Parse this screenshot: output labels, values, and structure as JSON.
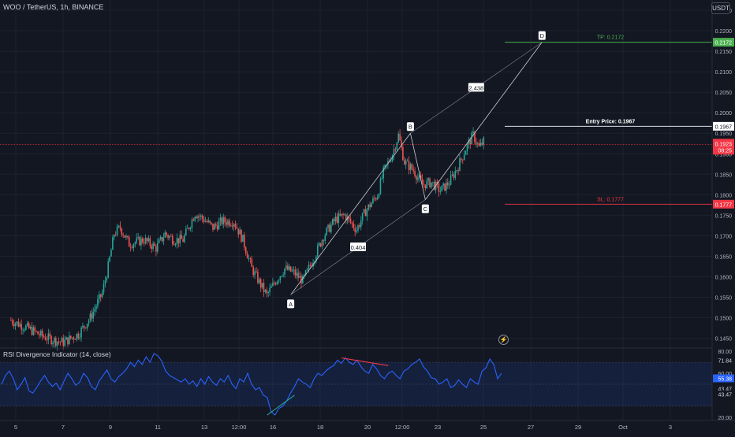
{
  "header": {
    "title": "WOO / TetherUS, 1h, BINANCE",
    "currency_button": "USDT"
  },
  "rsi_title": "RSI Divergence Indicator (14, close)",
  "colors": {
    "bg": "#131722",
    "up": "#26a69a",
    "down": "#ef5350",
    "tp": "#4caf50",
    "sl": "#f23645",
    "rsi": "#2962ff",
    "price_line": "#f23645"
  },
  "chart_data": [
    {
      "type": "candlestick",
      "symbol": "WOO / TetherUS",
      "timeframe": "1h",
      "y_ticks": [
        "0.2250",
        "0.2200",
        "0.2150",
        "0.2100",
        "0.2050",
        "0.2000",
        "0.1950",
        "0.1900",
        "0.1850",
        "0.1800",
        "0.1750",
        "0.1700",
        "0.1650",
        "0.1600",
        "0.1550",
        "0.1500",
        "0.1450"
      ],
      "x_ticks": [
        "5",
        "7",
        "9",
        "11",
        "13",
        "12:00",
        "16",
        "18",
        "20",
        "12:00",
        "23",
        "25",
        "27",
        "29",
        "Oct",
        "3"
      ],
      "ylim": [
        0.143,
        0.2275
      ],
      "path": [
        [
          0,
          0.1495
        ],
        [
          12,
          0.1475
        ],
        [
          22,
          0.1455
        ],
        [
          30,
          0.1445
        ],
        [
          36,
          0.144
        ],
        [
          46,
          0.146
        ],
        [
          54,
          0.15
        ],
        [
          62,
          0.156
        ],
        [
          66,
          0.1625
        ],
        [
          70,
          0.1705
        ],
        [
          74,
          0.172
        ],
        [
          80,
          0.168
        ],
        [
          90,
          0.169
        ],
        [
          98,
          0.167
        ],
        [
          104,
          0.1705
        ],
        [
          110,
          0.169
        ],
        [
          116,
          0.169
        ],
        [
          124,
          0.1755
        ],
        [
          130,
          0.174
        ],
        [
          136,
          0.172
        ],
        [
          142,
          0.1735
        ],
        [
          150,
          0.1735
        ],
        [
          156,
          0.169
        ],
        [
          162,
          0.162
        ],
        [
          168,
          0.158
        ],
        [
          172,
          0.1555
        ],
        [
          178,
          0.159
        ],
        [
          184,
          0.162
        ],
        [
          190,
          0.161
        ],
        [
          196,
          0.159
        ],
        [
          204,
          0.165
        ],
        [
          210,
          0.17
        ],
        [
          218,
          0.174
        ],
        [
          224,
          0.175
        ],
        [
          232,
          0.1715
        ],
        [
          238,
          0.176
        ],
        [
          246,
          0.18
        ],
        [
          250,
          0.1855
        ],
        [
          256,
          0.19
        ],
        [
          260,
          0.1945
        ],
        [
          264,
          0.188
        ],
        [
          270,
          0.186
        ],
        [
          276,
          0.1825
        ],
        [
          282,
          0.183
        ],
        [
          288,
          0.181
        ],
        [
          294,
          0.183
        ],
        [
          300,
          0.187
        ],
        [
          306,
          0.192
        ],
        [
          310,
          0.1945
        ],
        [
          314,
          0.1915
        ],
        [
          318,
          0.1935
        ]
      ],
      "x_domain": [
        0,
        330
      ],
      "current_price": {
        "value": "0.1923",
        "countdown": "08:25"
      },
      "trade": {
        "entry": {
          "label": "Entry Price: 0.1967",
          "value": "0.1967"
        },
        "tp": {
          "label": "TP: 0.2172",
          "value": "0.2172"
        },
        "sl": {
          "label": "SL: 0.1777",
          "value": "0.1777"
        }
      },
      "pattern": {
        "points": [
          {
            "name": "A",
            "x": 188,
            "y": 0.1556
          },
          {
            "name": "B",
            "x": 268,
            "y": 0.195
          },
          {
            "name": "C",
            "x": 278,
            "y": 0.1788
          },
          {
            "name": "D",
            "x": 356,
            "y": 0.2172
          }
        ],
        "ratios": [
          {
            "label": "0.404",
            "between": [
              "A",
              "C"
            ]
          },
          {
            "label": "2.438",
            "between": [
              "B",
              "D"
            ]
          }
        ]
      }
    },
    {
      "type": "line",
      "name": "RSI Divergence Indicator (14, close)",
      "y_ticks": [
        "80.00",
        "60.00",
        "20.00"
      ],
      "ylim": [
        17,
        83
      ],
      "band": [
        30,
        70
      ],
      "labels": {
        "rsi": "55.38",
        "upper": "71.84",
        "lower_a": "43.47",
        "lower_b": "43.47"
      },
      "values": [
        50,
        58,
        62,
        55,
        45,
        50,
        56,
        44,
        42,
        47,
        53,
        58,
        52,
        48,
        51,
        45,
        53,
        60,
        55,
        49,
        52,
        60,
        56,
        48,
        45,
        53,
        58,
        63,
        55,
        52,
        57,
        60,
        64,
        70,
        66,
        72,
        68,
        75,
        70,
        78,
        76,
        71,
        62,
        58,
        56,
        54,
        52,
        55,
        50,
        53,
        48,
        55,
        50,
        57,
        52,
        49,
        55,
        52,
        58,
        50,
        46,
        55,
        52,
        60,
        50,
        45,
        47,
        40,
        38,
        25,
        22,
        28,
        30,
        35,
        42,
        48,
        55,
        52,
        50,
        47,
        55,
        60,
        58,
        62,
        65,
        67,
        72,
        69,
        74,
        70,
        68,
        72,
        66,
        62,
        60,
        68,
        64,
        58,
        55,
        60,
        62,
        58,
        55,
        62,
        64,
        68,
        70,
        73,
        66,
        62,
        56,
        55,
        50,
        52,
        55,
        47,
        49,
        54,
        50,
        47,
        55,
        52,
        50,
        62,
        65,
        73,
        68,
        55,
        60
      ]
    }
  ]
}
